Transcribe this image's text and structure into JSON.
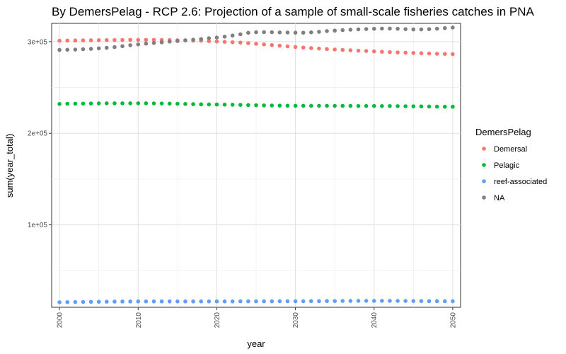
{
  "chart_data": {
    "type": "scatter",
    "title": "By DemersPelag - RCP 2.6: Projection of a sample of small-scale fisheries catches in PNA",
    "xlabel": "year",
    "ylabel": "sum(year_total)",
    "xlim": [
      1999,
      2051
    ],
    "ylim": [
      10000,
      320000
    ],
    "x_ticks": [
      2000,
      2010,
      2020,
      2030,
      2040,
      2050
    ],
    "x_tick_labels": [
      "2000",
      "2010",
      "2020",
      "2030",
      "2040",
      "2050"
    ],
    "y_ticks": [
      100000,
      200000,
      300000
    ],
    "y_tick_labels": [
      "1e+05",
      "2e+05",
      "3e+05"
    ],
    "grid": true,
    "legend_title": "DemersPelag",
    "legend_position": "right",
    "x": [
      2000,
      2001,
      2002,
      2003,
      2004,
      2005,
      2006,
      2007,
      2008,
      2009,
      2010,
      2011,
      2012,
      2013,
      2014,
      2015,
      2016,
      2017,
      2018,
      2019,
      2020,
      2021,
      2022,
      2023,
      2024,
      2025,
      2026,
      2027,
      2028,
      2029,
      2030,
      2031,
      2032,
      2033,
      2034,
      2035,
      2036,
      2037,
      2038,
      2039,
      2040,
      2041,
      2042,
      2043,
      2044,
      2045,
      2046,
      2047,
      2048,
      2049,
      2050
    ],
    "series": [
      {
        "name": "Demersal",
        "color": "#F8766D",
        "values": [
          301000,
          301200,
          301300,
          301400,
          301500,
          301600,
          301700,
          301800,
          301900,
          302000,
          302000,
          302000,
          302000,
          301900,
          301800,
          301600,
          301400,
          301200,
          301000,
          300600,
          300200,
          299800,
          299400,
          299000,
          298400,
          297700,
          297000,
          296300,
          295600,
          294900,
          294200,
          293600,
          293000,
          292500,
          292000,
          291500,
          291000,
          290600,
          290200,
          289800,
          289400,
          289000,
          288600,
          288300,
          288000,
          287700,
          287400,
          287100,
          286800,
          286600,
          286400
        ]
      },
      {
        "name": "Pelagic",
        "color": "#00BA38",
        "values": [
          232000,
          232200,
          232300,
          232400,
          232500,
          232600,
          232700,
          232700,
          232700,
          232700,
          232700,
          232700,
          232600,
          232500,
          232400,
          232200,
          232000,
          231800,
          231600,
          231500,
          231400,
          231300,
          231200,
          231000,
          230800,
          230600,
          230400,
          230300,
          230200,
          230100,
          230000,
          230000,
          230000,
          230000,
          230000,
          229900,
          229900,
          229900,
          229800,
          229800,
          229800,
          229700,
          229700,
          229600,
          229500,
          229400,
          229300,
          229200,
          229100,
          229000,
          229000
        ]
      },
      {
        "name": "reef-associated",
        "color": "#619CFF",
        "values": [
          15500,
          15600,
          15700,
          15800,
          15900,
          16000,
          16100,
          16200,
          16300,
          16300,
          16400,
          16400,
          16400,
          16400,
          16400,
          16400,
          16400,
          16400,
          16400,
          16400,
          16400,
          16400,
          16400,
          16500,
          16500,
          16500,
          16500,
          16500,
          16600,
          16600,
          16600,
          16600,
          16700,
          16700,
          16800,
          16800,
          16900,
          16900,
          17000,
          17000,
          17000,
          17000,
          17000,
          16900,
          16900,
          16800,
          16800,
          16700,
          16700,
          16600,
          16600
        ]
      },
      {
        "name": "NA",
        "color": "#7F7F7F",
        "values": [
          291000,
          291200,
          291400,
          291800,
          292200,
          292700,
          293300,
          294100,
          295100,
          296100,
          297100,
          297900,
          298600,
          299300,
          300100,
          300700,
          301500,
          302200,
          302900,
          303800,
          304500,
          305500,
          306700,
          308100,
          309700,
          310300,
          310400,
          310300,
          310100,
          310000,
          309800,
          309800,
          310200,
          310800,
          311600,
          312100,
          312600,
          313100,
          313500,
          313800,
          314100,
          314300,
          314300,
          314100,
          313700,
          313400,
          313400,
          313700,
          314200,
          314800,
          315400
        ]
      }
    ]
  }
}
